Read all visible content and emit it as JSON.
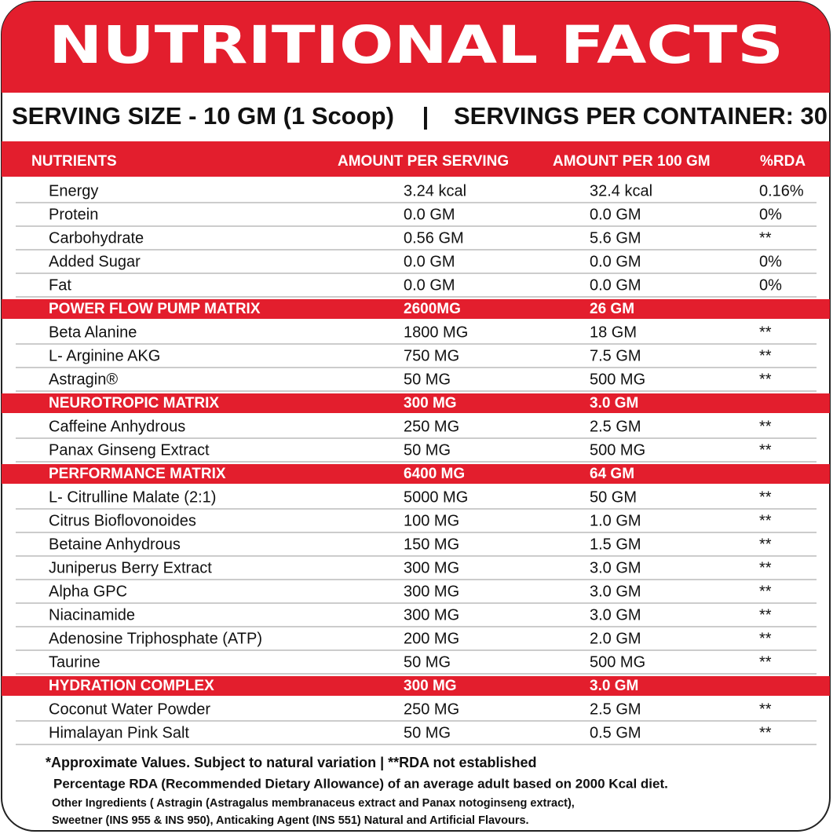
{
  "header": {
    "title": "NUTRITIONAL FACTS"
  },
  "serving": {
    "size": "SERVING SIZE - 10 GM (1 Scoop)",
    "separator": "|",
    "per_container": "SERVINGS PER CONTAINER: 30"
  },
  "table": {
    "columns": [
      "NUTRIENTS",
      "AMOUNT PER SERVING",
      "AMOUNT PER 100 GM",
      "%RDA"
    ],
    "rows": [
      [
        "Energy",
        "3.24 kcal",
        "32.4 kcal",
        "0.16%"
      ],
      [
        "Protein",
        "0.0 GM",
        "0.0 GM",
        "0%"
      ],
      [
        "Carbohydrate",
        "0.56 GM",
        "5.6 GM",
        "**"
      ],
      [
        "Added Sugar",
        "0.0 GM",
        "0.0 GM",
        "0%"
      ],
      [
        "Fat",
        "0.0 GM",
        "0.0 GM",
        "0%"
      ],
      [
        "POWER FLOW PUMP MATRIX",
        "2600MG",
        "26 GM"
      ],
      [
        "Beta Alanine",
        "1800 MG",
        "18 GM",
        "**"
      ],
      [
        "L- Arginine AKG",
        "750 MG",
        "7.5 GM",
        "**"
      ],
      [
        "Astragin®",
        "50 MG",
        "500 MG",
        "**"
      ],
      [
        "NEUROTROPIC MATRIX",
        "300 MG",
        "3.0 GM"
      ],
      [
        "Caffeine Anhydrous",
        "250 MG",
        "2.5 GM",
        "**"
      ],
      [
        "Panax Ginseng Extract",
        "50 MG",
        "500 MG",
        "**"
      ],
      [
        "PERFORMANCE MATRIX",
        "6400 MG",
        "64 GM"
      ],
      [
        "L- Citrulline Malate (2:1)",
        "5000 MG",
        "50 GM",
        "**"
      ],
      [
        "Citrus Bioflovonoides",
        "100 MG",
        "1.0 GM",
        "**"
      ],
      [
        "Betaine Anhydrous",
        "150 MG",
        "1.5 GM",
        "**"
      ],
      [
        "Juniperus Berry Extract",
        "300 MG",
        "3.0 GM",
        "**"
      ],
      [
        "Alpha GPC",
        "300 MG",
        "3.0 GM",
        "**"
      ],
      [
        "Niacinamide",
        "300 MG",
        "3.0 GM",
        "**"
      ],
      [
        "Adenosine Triphosphate (ATP)",
        "200 MG",
        "2.0 GM",
        "**"
      ],
      [
        "Taurine",
        "50 MG",
        "500 MG",
        "**"
      ],
      [
        "HYDRATION COMPLEX",
        "300 MG",
        "3.0 GM"
      ],
      [
        "Coconut Water Powder",
        "250 MG",
        "2.5 GM",
        "**"
      ],
      [
        "Himalayan Pink Salt",
        "50 MG",
        "0.5 GM",
        "**"
      ]
    ]
  },
  "footer": {
    "notes": [
      "*Approximate Values. Subject to natural variation | **RDA not established",
      "Percentage RDA (Recommended Dietary Allowance) of an average adult based on 2000 Kcal diet.",
      "Other Ingredients ( Astragin (Astragalus membranaceus extract and Panax notoginseng extract),",
      "Sweetner (INS 955 & INS 950), Anticaking Agent (INS 551) Natural and Artificial Flavours."
    ]
  }
}
